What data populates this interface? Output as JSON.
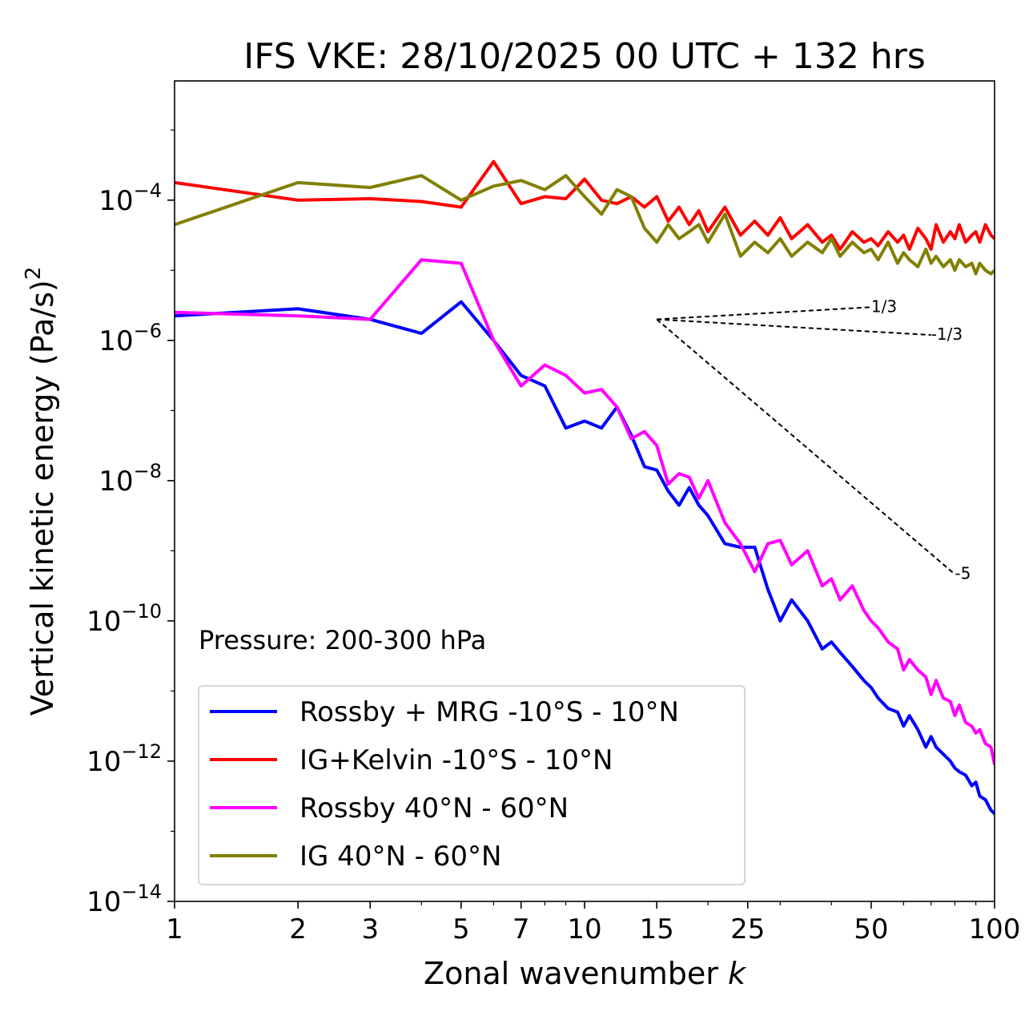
{
  "chart_data": {
    "type": "line",
    "title": "IFS VKE: 28/10/2025 00 UTC + 132 hrs",
    "xlabel": "Zonal wavenumber",
    "xlabel_var": "k",
    "ylabel": "Vertical kinetic energy (Pa/s)",
    "ylabel_exp": "2",
    "xscale": "log",
    "yscale": "log",
    "xlim": [
      1,
      100
    ],
    "ylim_exp": [
      -14,
      -2.3
    ],
    "x_ticks": [
      1,
      2,
      3,
      5,
      7,
      10,
      15,
      25,
      50,
      100
    ],
    "x_tick_labels": [
      "1",
      "2",
      "3",
      "5",
      "7",
      "10",
      "15",
      "25",
      "50",
      "100"
    ],
    "y_tick_exponents": [
      -4,
      -6,
      -8,
      -10,
      -12,
      -14
    ],
    "y_tick_base": "10",
    "y_tick_labels": [
      "−4",
      "−6",
      "−8",
      "−10",
      "−12",
      "−14"
    ],
    "annotation": "Pressure: 200-300 hPa",
    "legend_position": "lower-left",
    "reference_slopes": {
      "origin": {
        "k": 15,
        "exp": -5.7
      },
      "lines": [
        {
          "slope": 0.3333,
          "k_end": 50,
          "label": "1/3"
        },
        {
          "slope": -0.3333,
          "k_end": 70,
          "label": "-1/3"
        },
        {
          "slope": -5,
          "k_end": 80,
          "label": "-5"
        }
      ]
    },
    "series": [
      {
        "name": "Rossby + MRG -10°S - 10°N",
        "color": "#0000ff",
        "k": [
          1,
          2,
          3,
          4,
          5,
          6,
          7,
          8,
          9,
          10,
          11,
          12,
          13,
          14,
          15,
          16,
          17,
          18,
          19,
          20,
          22,
          24,
          26,
          28,
          30,
          32,
          35,
          38,
          40,
          42,
          45,
          48,
          50,
          52,
          55,
          58,
          60,
          62,
          65,
          68,
          70,
          72,
          75,
          78,
          80,
          82,
          85,
          88,
          90,
          92,
          95,
          98,
          100
        ],
        "log10": [
          -5.65,
          -5.55,
          -5.7,
          -5.9,
          -5.45,
          -6.0,
          -6.5,
          -6.65,
          -7.25,
          -7.15,
          -7.25,
          -6.95,
          -7.35,
          -7.8,
          -7.85,
          -8.15,
          -8.35,
          -8.1,
          -8.35,
          -8.5,
          -8.9,
          -8.95,
          -8.95,
          -9.55,
          -10.0,
          -9.7,
          -10.0,
          -10.4,
          -10.3,
          -10.45,
          -10.65,
          -10.85,
          -10.95,
          -11.1,
          -11.25,
          -11.3,
          -11.5,
          -11.35,
          -11.55,
          -11.8,
          -11.65,
          -11.8,
          -11.9,
          -12.0,
          -12.1,
          -12.15,
          -12.2,
          -12.35,
          -12.3,
          -12.5,
          -12.55,
          -12.7,
          -12.75
        ]
      },
      {
        "name": "IG+Kelvin -10°S - 10°N",
        "color": "#ff0000",
        "k": [
          1,
          2,
          3,
          4,
          5,
          6,
          7,
          8,
          9,
          10,
          11,
          12,
          13,
          14,
          15,
          16,
          17,
          18,
          19,
          20,
          22,
          24,
          26,
          28,
          30,
          32,
          35,
          38,
          40,
          42,
          45,
          48,
          50,
          52,
          55,
          58,
          60,
          62,
          65,
          68,
          70,
          72,
          75,
          78,
          80,
          82,
          85,
          88,
          90,
          92,
          95,
          98,
          100
        ],
        "log10": [
          -3.75,
          -4.0,
          -3.98,
          -4.02,
          -4.1,
          -3.45,
          -4.05,
          -3.95,
          -3.98,
          -3.7,
          -4.0,
          -4.05,
          -3.95,
          -4.1,
          -3.95,
          -4.3,
          -4.1,
          -4.35,
          -4.15,
          -4.45,
          -4.1,
          -4.5,
          -4.3,
          -4.5,
          -4.25,
          -4.55,
          -4.35,
          -4.6,
          -4.5,
          -4.7,
          -4.45,
          -4.6,
          -4.55,
          -4.65,
          -4.45,
          -4.6,
          -4.5,
          -4.7,
          -4.4,
          -4.55,
          -4.7,
          -4.35,
          -4.6,
          -4.45,
          -4.55,
          -4.35,
          -4.6,
          -4.5,
          -4.45,
          -4.6,
          -4.35,
          -4.5,
          -4.55
        ]
      },
      {
        "name": "Rossby 40°N - 60°N",
        "color": "#ff00ff",
        "k": [
          1,
          2,
          3,
          4,
          5,
          6,
          7,
          8,
          9,
          10,
          11,
          12,
          13,
          14,
          15,
          16,
          17,
          18,
          19,
          20,
          22,
          24,
          26,
          28,
          30,
          32,
          35,
          38,
          40,
          42,
          45,
          48,
          50,
          52,
          55,
          58,
          60,
          62,
          65,
          68,
          70,
          72,
          75,
          78,
          80,
          82,
          85,
          88,
          90,
          92,
          95,
          98,
          100
        ],
        "log10": [
          -5.6,
          -5.65,
          -5.7,
          -4.85,
          -4.9,
          -6.0,
          -6.65,
          -6.35,
          -6.5,
          -6.75,
          -6.7,
          -6.95,
          -7.4,
          -7.3,
          -7.5,
          -8.05,
          -7.9,
          -7.95,
          -8.25,
          -8.0,
          -8.6,
          -8.9,
          -9.3,
          -8.9,
          -8.85,
          -9.2,
          -9.0,
          -9.5,
          -9.4,
          -9.7,
          -9.5,
          -9.85,
          -10.0,
          -10.1,
          -10.3,
          -10.4,
          -10.7,
          -10.55,
          -10.7,
          -10.8,
          -11.05,
          -10.85,
          -11.1,
          -11.15,
          -11.35,
          -11.2,
          -11.45,
          -11.5,
          -11.6,
          -11.55,
          -11.75,
          -11.8,
          -12.05
        ]
      },
      {
        "name": "IG 40°N - 60°N",
        "color": "#808000",
        "k": [
          1,
          2,
          3,
          4,
          5,
          6,
          7,
          8,
          9,
          10,
          11,
          12,
          13,
          14,
          15,
          16,
          17,
          18,
          19,
          20,
          22,
          24,
          26,
          28,
          30,
          32,
          35,
          38,
          40,
          42,
          45,
          48,
          50,
          52,
          55,
          58,
          60,
          62,
          65,
          68,
          70,
          72,
          75,
          78,
          80,
          82,
          85,
          88,
          90,
          92,
          95,
          98,
          100
        ],
        "log10": [
          -4.35,
          -3.75,
          -3.82,
          -3.65,
          -4.0,
          -3.8,
          -3.72,
          -3.85,
          -3.65,
          -3.95,
          -4.2,
          -3.85,
          -3.95,
          -4.4,
          -4.6,
          -4.35,
          -4.55,
          -4.45,
          -4.35,
          -4.6,
          -4.2,
          -4.8,
          -4.6,
          -4.75,
          -4.55,
          -4.8,
          -4.6,
          -4.75,
          -4.55,
          -4.8,
          -4.6,
          -4.75,
          -4.7,
          -4.85,
          -4.6,
          -4.9,
          -4.75,
          -4.85,
          -4.95,
          -4.7,
          -4.9,
          -4.8,
          -4.95,
          -4.85,
          -5.0,
          -4.85,
          -4.95,
          -4.9,
          -5.05,
          -4.9,
          -5.0,
          -5.05,
          -5.0
        ]
      }
    ]
  }
}
